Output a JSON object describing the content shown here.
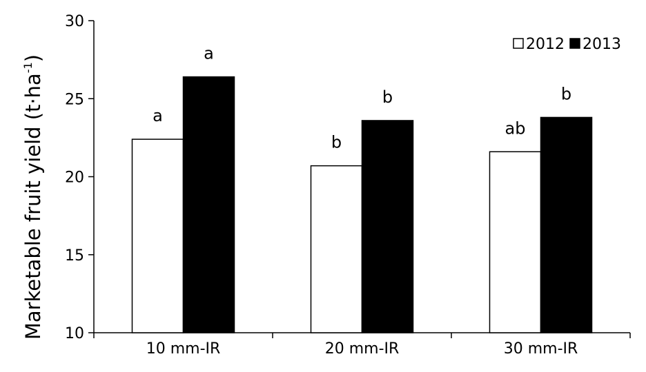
{
  "chart_data": {
    "type": "bar",
    "categories": [
      "10 mm-IR",
      "20 mm-IR",
      "30 mm-IR"
    ],
    "series": [
      {
        "name": "2012",
        "color": "#ffffff",
        "stroke": "#000000",
        "values": [
          22.4,
          20.7,
          21.6
        ],
        "labels": [
          "a",
          "b",
          "ab"
        ]
      },
      {
        "name": "2013",
        "color": "#000000",
        "stroke": "#000000",
        "values": [
          26.4,
          23.6,
          23.8
        ],
        "labels": [
          "a",
          "b",
          "b"
        ]
      }
    ],
    "title": "",
    "xlabel": "",
    "ylabel": {
      "main": "Marketable fruit yield (t·ha",
      "sup": "-1",
      "close": ")"
    },
    "ylim": [
      10,
      30
    ],
    "yticks": [
      10,
      15,
      20,
      25,
      30
    ],
    "grid": false,
    "legend_position": "top-right"
  }
}
